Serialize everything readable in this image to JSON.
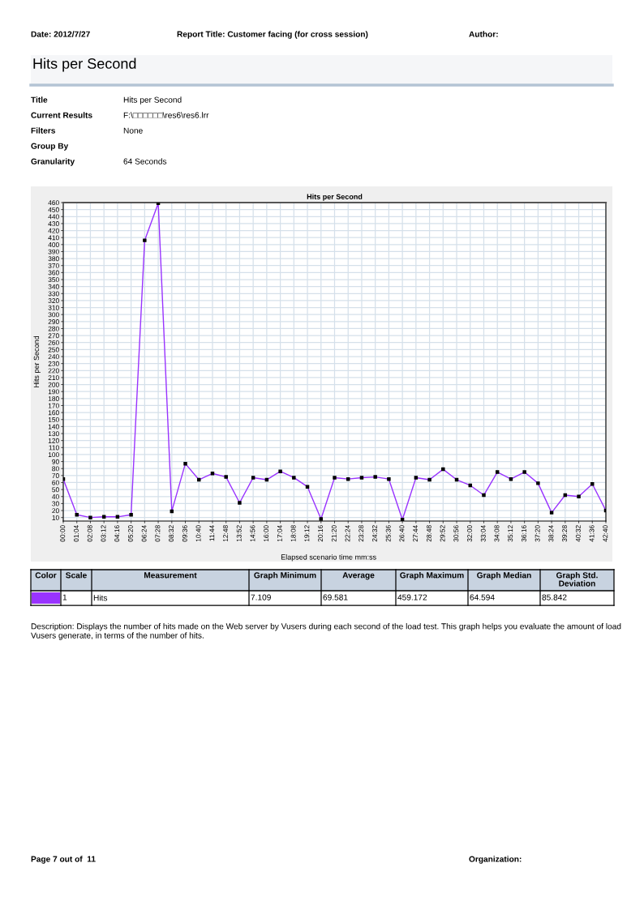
{
  "chart_data": {
    "type": "line",
    "title": "Hits per Second",
    "xlabel": "Elapsed scenario time mm:ss",
    "ylabel": "Hits per Second",
    "categories": [
      "00:00",
      "01:04",
      "02:08",
      "03:12",
      "04:16",
      "05:20",
      "06:24",
      "07:28",
      "08:32",
      "09:36",
      "10:40",
      "11:44",
      "12:48",
      "13:52",
      "14:56",
      "16:00",
      "17:04",
      "18:08",
      "19:12",
      "20:16",
      "21:20",
      "22:24",
      "23:28",
      "24:32",
      "25:36",
      "26:40",
      "27:44",
      "28:48",
      "29:52",
      "30:56",
      "32:00",
      "33:04",
      "34:08",
      "35:12",
      "36:16",
      "37:20",
      "38:24",
      "39:28",
      "40:32",
      "41:36",
      "42:40"
    ],
    "series": [
      {
        "name": "Hits",
        "color": "#9933ff",
        "values": [
          65,
          14,
          10,
          11,
          11,
          14,
          406,
          459,
          19,
          87,
          64,
          73,
          68,
          31,
          67,
          64,
          76,
          67,
          54,
          8,
          67,
          65,
          67,
          68,
          65,
          7,
          67,
          64,
          79,
          64,
          56,
          42,
          75,
          65,
          75,
          59,
          17,
          42,
          40,
          58,
          20
        ]
      }
    ],
    "ylim": [
      5,
      460
    ],
    "yticks": [
      10,
      20,
      30,
      40,
      50,
      60,
      70,
      80,
      90,
      100,
      110,
      120,
      130,
      140,
      150,
      160,
      170,
      180,
      190,
      200,
      210,
      220,
      230,
      240,
      250,
      260,
      270,
      280,
      290,
      300,
      310,
      320,
      330,
      340,
      350,
      360,
      370,
      380,
      390,
      400,
      410,
      420,
      430,
      440,
      450,
      460
    ],
    "grid": true,
    "marker": "square",
    "line_style": "solid",
    "legend": "bottom",
    "annotations": [
      "Date: 2012/7/27",
      "Report Title: Customer facing (for cross session)",
      "Author:",
      "Hits per Second",
      "Title",
      "Hits per Second",
      "Current Results",
      "F:\\□□□□□□\\res6\\res6.lrr",
      "Filters",
      "None",
      "Group By",
      "Granularity",
      "64 Seconds",
      "Color",
      "Scale",
      "Measurement",
      "Graph Minimum",
      "Average",
      "Graph Maximum",
      "Graph Median",
      "Graph Std.\nDeviation",
      "1",
      "7.109",
      "69.581",
      "459.172",
      "64.594",
      "85.842",
      "Description: Displays the number of hits made on the Web server by Vusers during each second of the load test. This graph helps you evaluate the amount of load Vusers generate, in terms of the number of hits.",
      "Page 7 out of  11",
      "Organization:"
    ]
  }
}
